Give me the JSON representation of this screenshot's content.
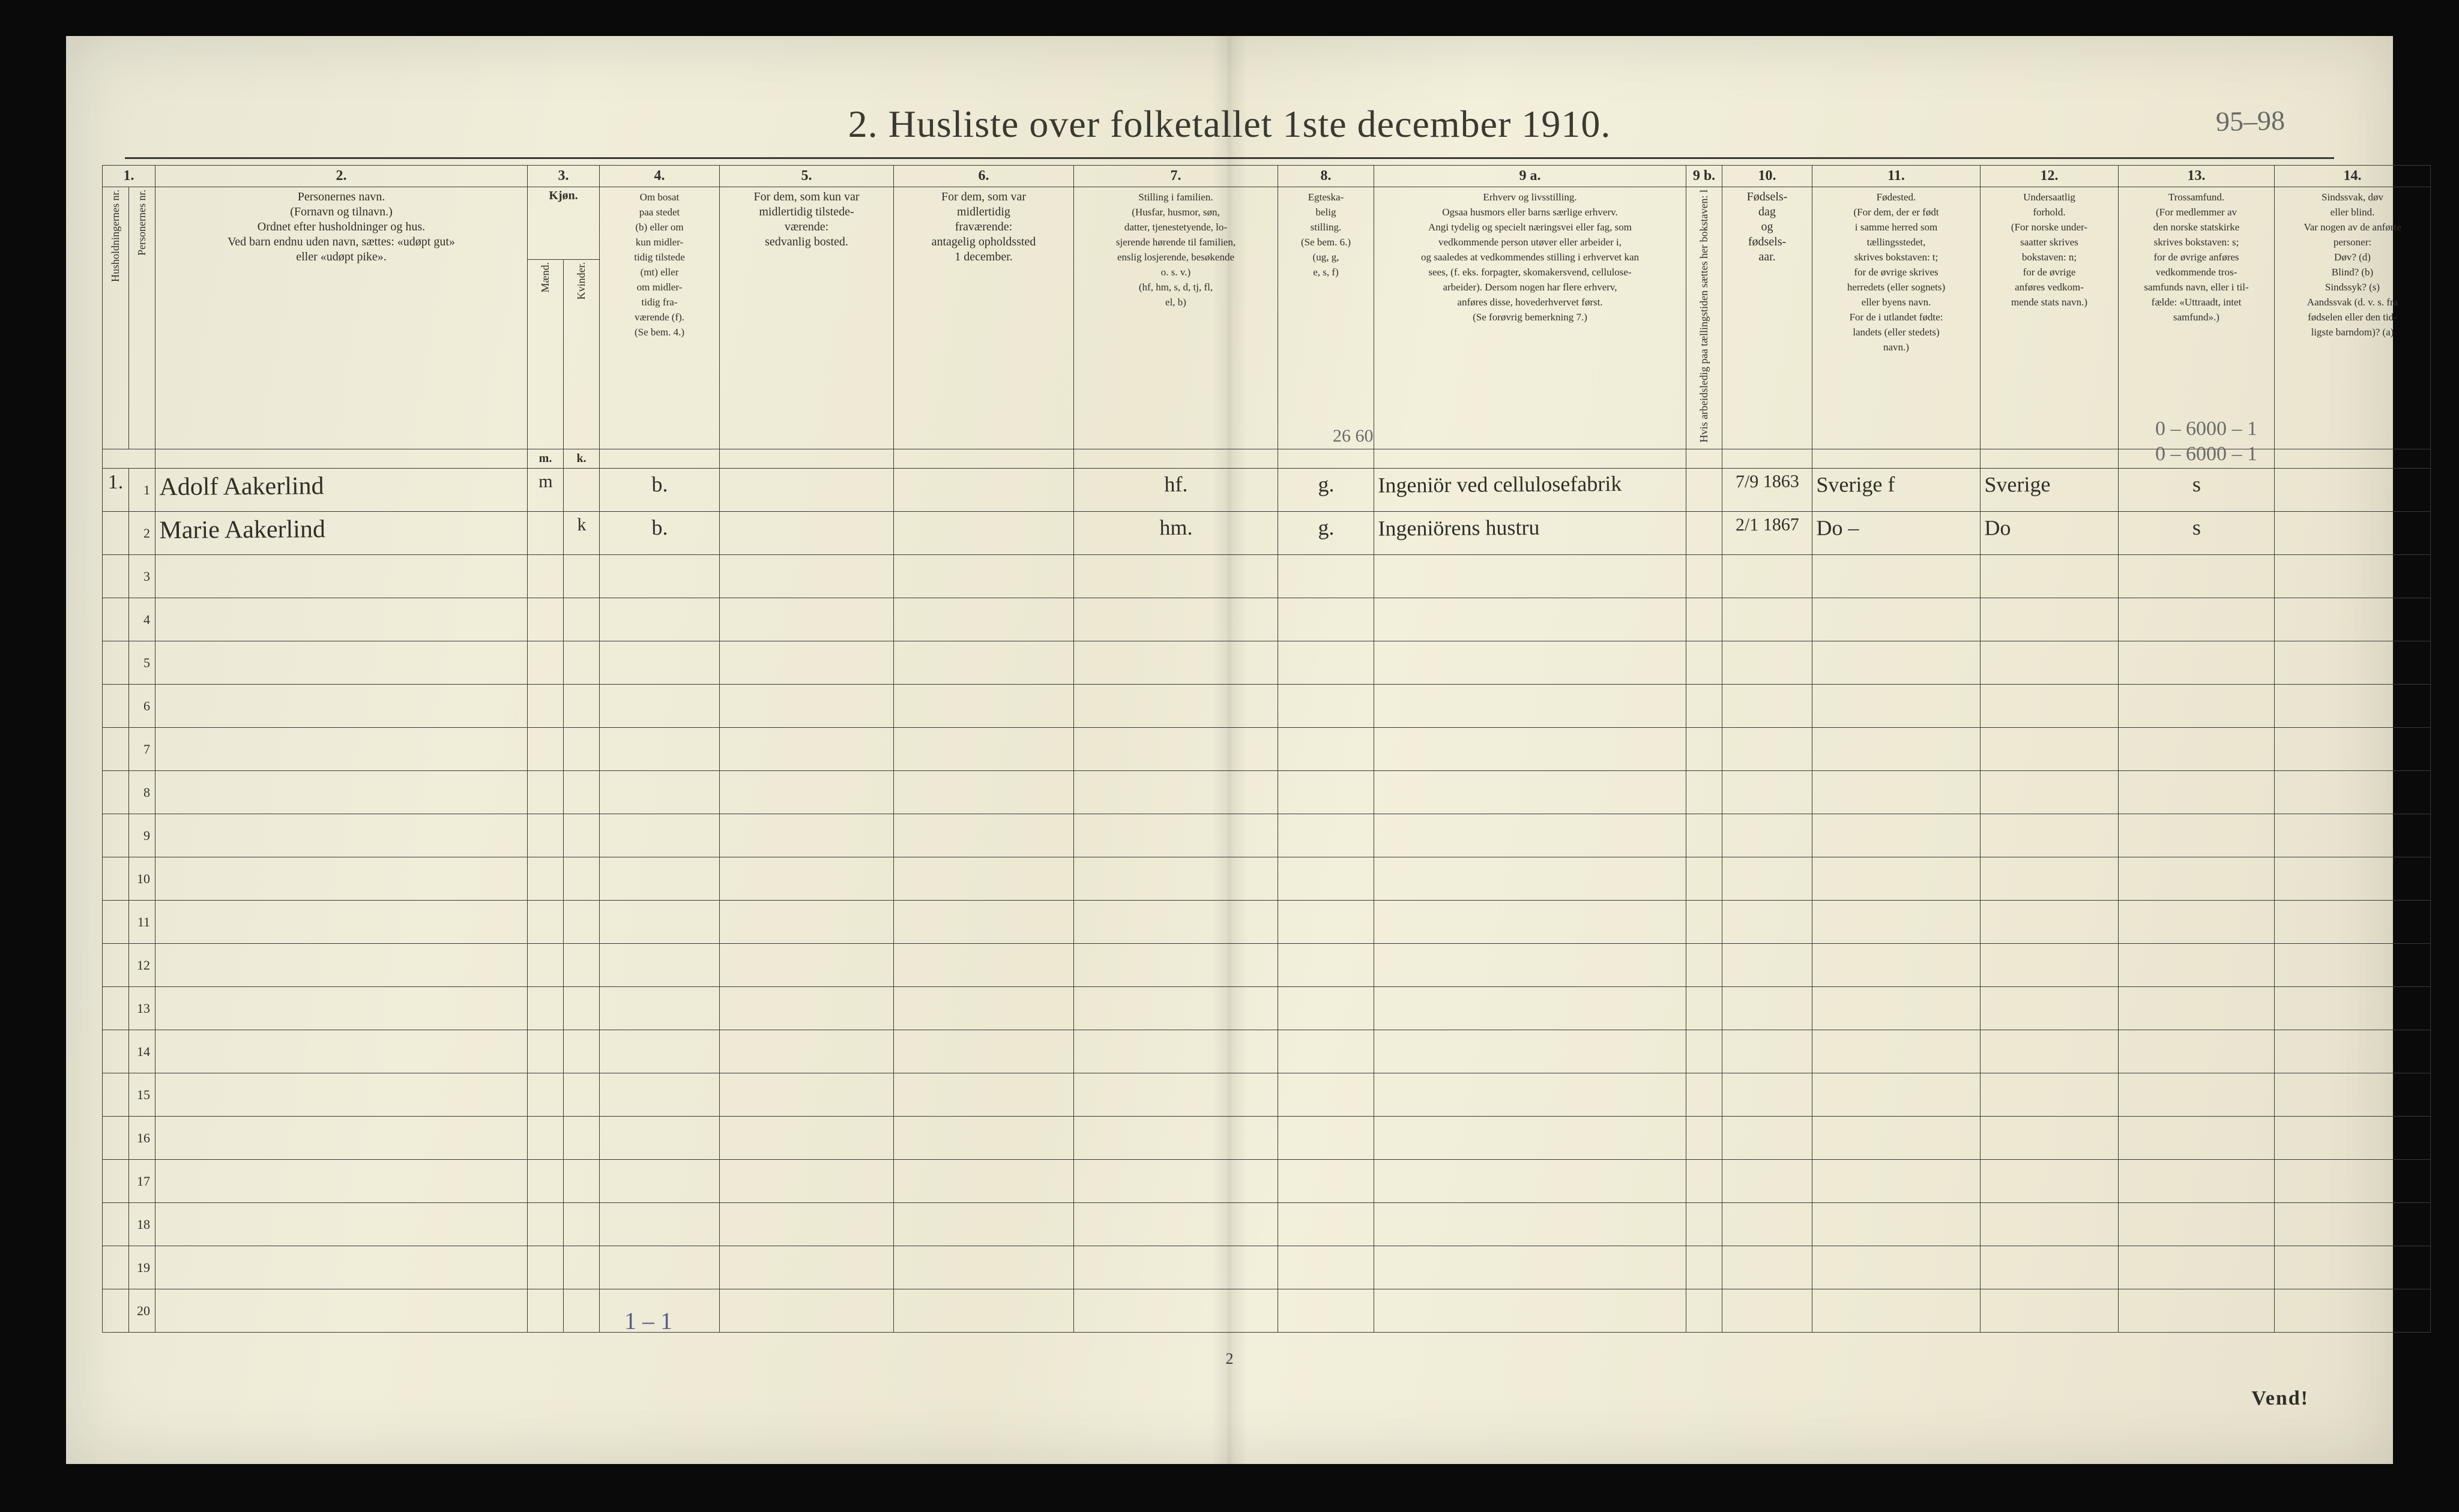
{
  "page_corner_ref": "95–98",
  "title": "2.  Husliste over folketallet 1ste december 1910.",
  "foot_page": "2",
  "foot_vend": "Vend!",
  "tally": "1 – 1",
  "colnums": [
    "1.",
    "2.",
    "3.",
    "4.",
    "5.",
    "6.",
    "7.",
    "8.",
    "9 a.",
    "9 b.",
    "10.",
    "11.",
    "12.",
    "13.",
    "14."
  ],
  "headers": {
    "h1a": "Husholdningernes nr.",
    "h1b": "Personernes nr.",
    "h2": "Personernes navn.\n(Fornavn og tilnavn.)\nOrdnet efter husholdninger og hus.\nVed barn endnu uden navn, sættes: «udøpt gut»\neller «udøpt pike».",
    "h3": "Kjøn.",
    "h3a": "Mænd.",
    "h3b": "Kvinder.",
    "h3sub_m": "m.",
    "h3sub_k": "k.",
    "h4": "Om bosat\npaa stedet\n(b) eller om\nkun midler-\ntidig tilstede\n(mt) eller\nom midler-\ntidig fra-\nværende (f).\n(Se bem. 4.)",
    "h5": "For dem, som kun var\nmidlertidig tilstede-\nværende:\nsedvanlig bosted.",
    "h6": "For dem, som var\nmidlertidig\nfraværende:\nantagelig opholdssted\n1 december.",
    "h7": "Stilling i familien.\n(Husfar, husmor, søn,\ndatter, tjenestetyende, lo-\nsjerende hørende til familien,\nenslig losjerende, besøkende\no. s. v.)\n(hf, hm, s, d, tj, fl,\nel, b)",
    "h8": "Egteska-\nbelig\nstilling.\n(Se bem. 6.)\n(ug, g,\ne, s, f)",
    "h9a": "Erhverv og livsstilling.\nOgsaa husmors eller barns særlige erhverv.\nAngi tydelig og specielt næringsvei eller fag, som\nvedkommende person utøver eller arbeider i,\nog saaledes at vedkommendes stilling i erhvervet kan\nsees, (f. eks. forpagter, skomakersvend, cellulose-\narbeider). Dersom nogen har flere erhverv,\nanføres disse, hovederhvervet først.\n(Se forøvrig bemerkning 7.)",
    "h9b": "Hvis arbeidsledig\npaa tællingstiden sættes\nher bokstaven: l",
    "h10": "Fødsels-\ndag\nog\nfødsels-\naar.",
    "h11": "Fødested.\n(For dem, der er født\ni samme herred som\ntællingsstedet,\nskrives bokstaven: t;\nfor de øvrige skrives\nherredets (eller sognets)\neller byens navn.\nFor de i utlandet fødte:\nlandets (eller stedets)\nnavn.)",
    "h12": "Undersaatlig\nforhold.\n(For norske under-\nsaatter skrives\nbokstaven: n;\nfor de øvrige\nanføres vedkom-\nmende stats navn.)",
    "h13": "Trossamfund.\n(For medlemmer av\nden norske statskirke\nskrives bokstaven: s;\nfor de øvrige anføres\nvedkommende tros-\nsamfunds navn, eller i til-\nfælde: «Uttraadt, intet\nsamfund».)",
    "h14": "Sindssvak, døv\neller blind.\nVar nogen av de anførte\npersoner:\nDøv?        (d)\nBlind?      (b)\nSindssyk?  (s)\nAandssvak (d. v. s. fra\nfødselen eller den tid-\nligste barndom)? (a)"
  },
  "above": {
    "code9a": "26 60",
    "code14a": "0 – 6000 – 1",
    "code14b": "0 – 6000 – 1"
  },
  "rows": [
    {
      "hh": "1.",
      "pn": "1",
      "name": "Adolf Aakerlind",
      "sex_m": "m",
      "sex_k": "",
      "bosat": "b.",
      "mt_sted": "",
      "frav_sted": "",
      "stilling": "hf.",
      "egt": "g.",
      "erhverv": "Ingeniör ved cellulosefabrik",
      "ledig": "",
      "fodt": "7/9 1863",
      "fodested": "Sverige  f",
      "undersaat": "Sverige",
      "tros": "s",
      "sind": ""
    },
    {
      "hh": "",
      "pn": "2",
      "name": "Marie Aakerlind",
      "sex_m": "",
      "sex_k": "k",
      "bosat": "b.",
      "mt_sted": "",
      "frav_sted": "",
      "stilling": "hm.",
      "egt": "g.",
      "erhverv": "Ingeniörens hustru",
      "ledig": "",
      "fodt": "2/1 1867",
      "fodested": "Do    –",
      "undersaat": "Do",
      "tros": "s",
      "sind": ""
    }
  ],
  "blank_row_labels": [
    "3",
    "4",
    "5",
    "6",
    "7",
    "8",
    "9",
    "10",
    "11",
    "12",
    "13",
    "14",
    "15",
    "16",
    "17",
    "18",
    "19",
    "20"
  ]
}
